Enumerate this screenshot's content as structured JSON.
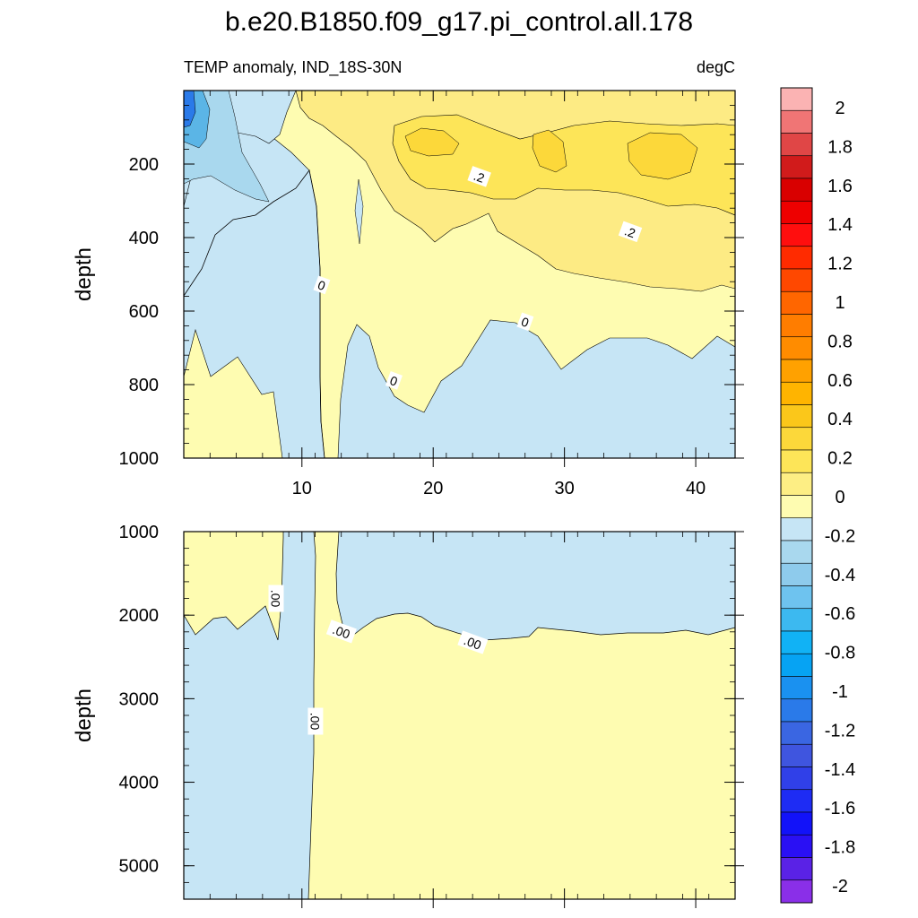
{
  "title": "b.e20.B1850.f09_g17.pi_control.all.178",
  "subtitle_left": "TEMP anomaly, IND_18S-30N",
  "subtitle_right": "degC",
  "colors": {
    "negative_small": "#c6e5f5",
    "negative_mid": "#a9d8ee",
    "negative_deep": "#5bb5e6",
    "positive_small": "#fefcb1",
    "positive_mid": "#fdeb84",
    "positive_deep": "#fcd83a",
    "contour_line": "#000000"
  },
  "chart_data": [
    {
      "type": "heatmap",
      "panel": "upper",
      "ylabel": "depth",
      "xlim": [
        1,
        43
      ],
      "ylim": [
        1000,
        0
      ],
      "x_ticks": [
        10,
        20,
        30,
        40
      ],
      "y_ticks": [
        200,
        400,
        600,
        800,
        1000
      ],
      "contour_labels": [
        {
          "text": "0",
          "x": 11.5,
          "depth": 530
        },
        {
          "text": "0",
          "x": 17,
          "depth": 790
        },
        {
          "text": "0",
          "x": 27,
          "depth": 630
        },
        {
          "text": ".2",
          "x": 23.5,
          "depth": 235
        },
        {
          "text": ".2",
          "x": 35,
          "depth": 385
        }
      ],
      "regions": [
        {
          "name": "warm layer east of x=12",
          "x_range": [
            12,
            43
          ],
          "depth_range": [
            0,
            550
          ],
          "anomaly": 0.2
        },
        {
          "name": "warm core",
          "x_range": [
            19,
            43
          ],
          "depth_range": [
            100,
            300
          ],
          "anomaly": 0.3
        },
        {
          "name": "cool west surface",
          "x_range": [
            1,
            11
          ],
          "depth_range": [
            0,
            600
          ],
          "anomaly": -0.1
        },
        {
          "name": "cool deep east",
          "x_range": [
            13,
            43
          ],
          "depth_range": [
            650,
            1000
          ],
          "anomaly": -0.1
        }
      ]
    },
    {
      "type": "heatmap",
      "panel": "lower",
      "ylabel": "depth",
      "xlim": [
        1,
        43
      ],
      "ylim": [
        5400,
        1000
      ],
      "y_ticks": [
        1000,
        2000,
        3000,
        4000,
        5000
      ],
      "contour_labels": [
        {
          "text": ".00",
          "x": 8,
          "depth": 1800
        },
        {
          "text": ".00",
          "x": 13,
          "depth": 2200
        },
        {
          "text": ".00",
          "x": 23,
          "depth": 2330
        },
        {
          "text": ".00",
          "x": 11,
          "depth": 3270
        }
      ],
      "regions": [
        {
          "name": "warm west upper",
          "x_range": [
            1,
            8.5
          ],
          "depth_range": [
            1000,
            2000
          ],
          "anomaly": 0.0
        },
        {
          "name": "cool west deep",
          "x_range": [
            1,
            11
          ],
          "depth_range": [
            2000,
            5400
          ],
          "anomaly": -0.05
        },
        {
          "name": "cool east upper",
          "x_range": [
            13,
            43
          ],
          "depth_range": [
            1000,
            2200
          ],
          "anomaly": -0.05
        },
        {
          "name": "warm east deep",
          "x_range": [
            11,
            43
          ],
          "depth_range": [
            2200,
            5400
          ],
          "anomaly": 0.02
        }
      ]
    }
  ],
  "colorbar": {
    "labels": [
      "2",
      "1.8",
      "1.6",
      "1.4",
      "1.2",
      "1",
      "0.8",
      "0.6",
      "0.4",
      "0.2",
      "0",
      "-0.2",
      "-0.4",
      "-0.6",
      "-0.8",
      "-1",
      "-1.2",
      "-1.4",
      "-1.6",
      "-1.8",
      "-2"
    ],
    "colors": [
      "#fbb3b3",
      "#f07575",
      "#e04646",
      "#d11b1b",
      "#d90000",
      "#ee0000",
      "#ff0e0e",
      "#ff2b00",
      "#ff4800",
      "#ff6600",
      "#ff7d00",
      "#ff8c00",
      "#ffa100",
      "#ffb400",
      "#fbc71a",
      "#fcd83a",
      "#fde558",
      "#fdee84",
      "#fefcb1",
      "#c6e5f5",
      "#a9d8ee",
      "#8ecbec",
      "#6ec3ef",
      "#3cb9f0",
      "#11b2f5",
      "#06a3f3",
      "#1a91f0",
      "#2a7ae9",
      "#3a66e2",
      "#3f55df",
      "#3040e8",
      "#1e2cf4",
      "#1212f9",
      "#2a10f4",
      "#5a22e6",
      "#8a2fe8"
    ]
  }
}
